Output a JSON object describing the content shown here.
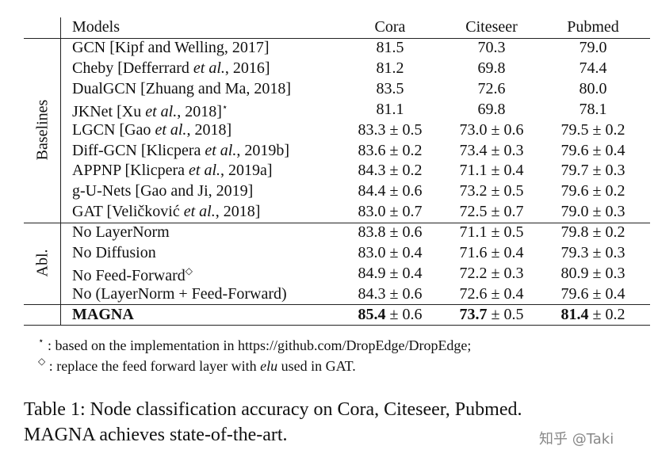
{
  "table": {
    "header": [
      "Models",
      "Cora",
      "Citeseer",
      "Pubmed"
    ],
    "groups": [
      {
        "label": "Baselines",
        "rows": [
          {
            "model": "GCN [Kipf and Welling, 2017]",
            "cells": [
              "81.5",
              "70.3",
              "79.0"
            ]
          },
          {
            "model": [
              {
                "text": "Cheby [Defferrard "
              },
              {
                "text": "et al.",
                "italic": true
              },
              {
                "text": ", 2016]"
              }
            ],
            "cells": [
              "81.2",
              "69.8",
              "74.4"
            ]
          },
          {
            "model": "DualGCN [Zhuang and Ma, 2018]",
            "cells": [
              "83.5",
              "72.6",
              "80.0"
            ]
          },
          {
            "model": [
              {
                "text": "JKNet [Xu "
              },
              {
                "text": "et al.",
                "italic": true
              },
              {
                "text": ", 2018]"
              },
              {
                "text": "⋆",
                "sup": true
              }
            ],
            "cells": [
              "81.1",
              "69.8",
              "78.1"
            ]
          },
          {
            "model": [
              {
                "text": "LGCN [Gao "
              },
              {
                "text": "et al.",
                "italic": true
              },
              {
                "text": ", 2018]"
              }
            ],
            "cells": [
              "83.3 ± 0.5",
              "73.0 ± 0.6",
              "79.5 ± 0.2"
            ]
          },
          {
            "model": [
              {
                "text": "Diff-GCN [Klicpera "
              },
              {
                "text": "et al.",
                "italic": true
              },
              {
                "text": ", 2019b]"
              }
            ],
            "cells": [
              "83.6 ± 0.2",
              "73.4 ± 0.3",
              "79.6 ± 0.4"
            ]
          },
          {
            "model": [
              {
                "text": "APPNP [Klicpera "
              },
              {
                "text": "et al.",
                "italic": true
              },
              {
                "text": ", 2019a]"
              }
            ],
            "cells": [
              "84.3 ± 0.2",
              "71.1 ± 0.4",
              "79.7 ± 0.3"
            ]
          },
          {
            "model": "g-U-Nets [Gao and Ji, 2019]",
            "cells": [
              "84.4 ± 0.6",
              "73.2 ± 0.5",
              "79.6 ± 0.2"
            ]
          },
          {
            "model": [
              {
                "text": "GAT [Veličković "
              },
              {
                "text": "et al.",
                "italic": true
              },
              {
                "text": ", 2018]"
              }
            ],
            "cells": [
              "83.0 ± 0.7",
              "72.5 ± 0.7",
              "79.0 ± 0.3"
            ]
          }
        ]
      },
      {
        "label": "Abl.",
        "rows": [
          {
            "model": "No LayerNorm",
            "cells": [
              "83.8 ± 0.6",
              "71.1 ± 0.5",
              "79.8 ± 0.2"
            ]
          },
          {
            "model": "No Diffusion",
            "cells": [
              "83.0 ± 0.4",
              "71.6 ± 0.4",
              "79.3 ± 0.3"
            ]
          },
          {
            "model": [
              {
                "text": "No Feed-Forward"
              },
              {
                "text": "◇",
                "sup": true
              }
            ],
            "cells": [
              "84.9 ± 0.4",
              "72.2 ± 0.3",
              "80.9 ± 0.3"
            ]
          },
          {
            "model": "No (LayerNorm + Feed-Forward)",
            "cells": [
              "84.3 ± 0.6",
              "72.6 ± 0.4",
              "79.6 ± 0.4"
            ]
          }
        ]
      },
      {
        "rows": [
          {
            "model": [
              {
                "text": "MAGNA",
                "bold": true
              }
            ],
            "cells": [
              [
                {
                  "text": "85.4",
                  "bold": true
                },
                {
                  "text": " ± 0.6"
                }
              ],
              [
                {
                  "text": "73.7",
                  "bold": true
                },
                {
                  "text": " ± 0.5"
                }
              ],
              [
                {
                  "text": "81.4",
                  "bold": true
                },
                {
                  "text": " ± 0.2"
                }
              ]
            ]
          }
        ]
      }
    ]
  },
  "footnotes": [
    [
      {
        "text": "⋆",
        "sup": true
      },
      {
        "text": " : based on the implementation in https://github.com/DropEdge/DropEdge;"
      }
    ],
    [
      {
        "text": "◇",
        "sup": true
      },
      {
        "text": " : replace the feed forward layer with "
      },
      {
        "text": "elu",
        "italic": true
      },
      {
        "text": " used in GAT."
      }
    ]
  ],
  "caption": [
    "Table 1: Node classification accuracy on Cora, Citeseer, Pubmed.",
    "MAGNA achieves state-of-the-art."
  ],
  "watermark": "知乎 @Taki"
}
